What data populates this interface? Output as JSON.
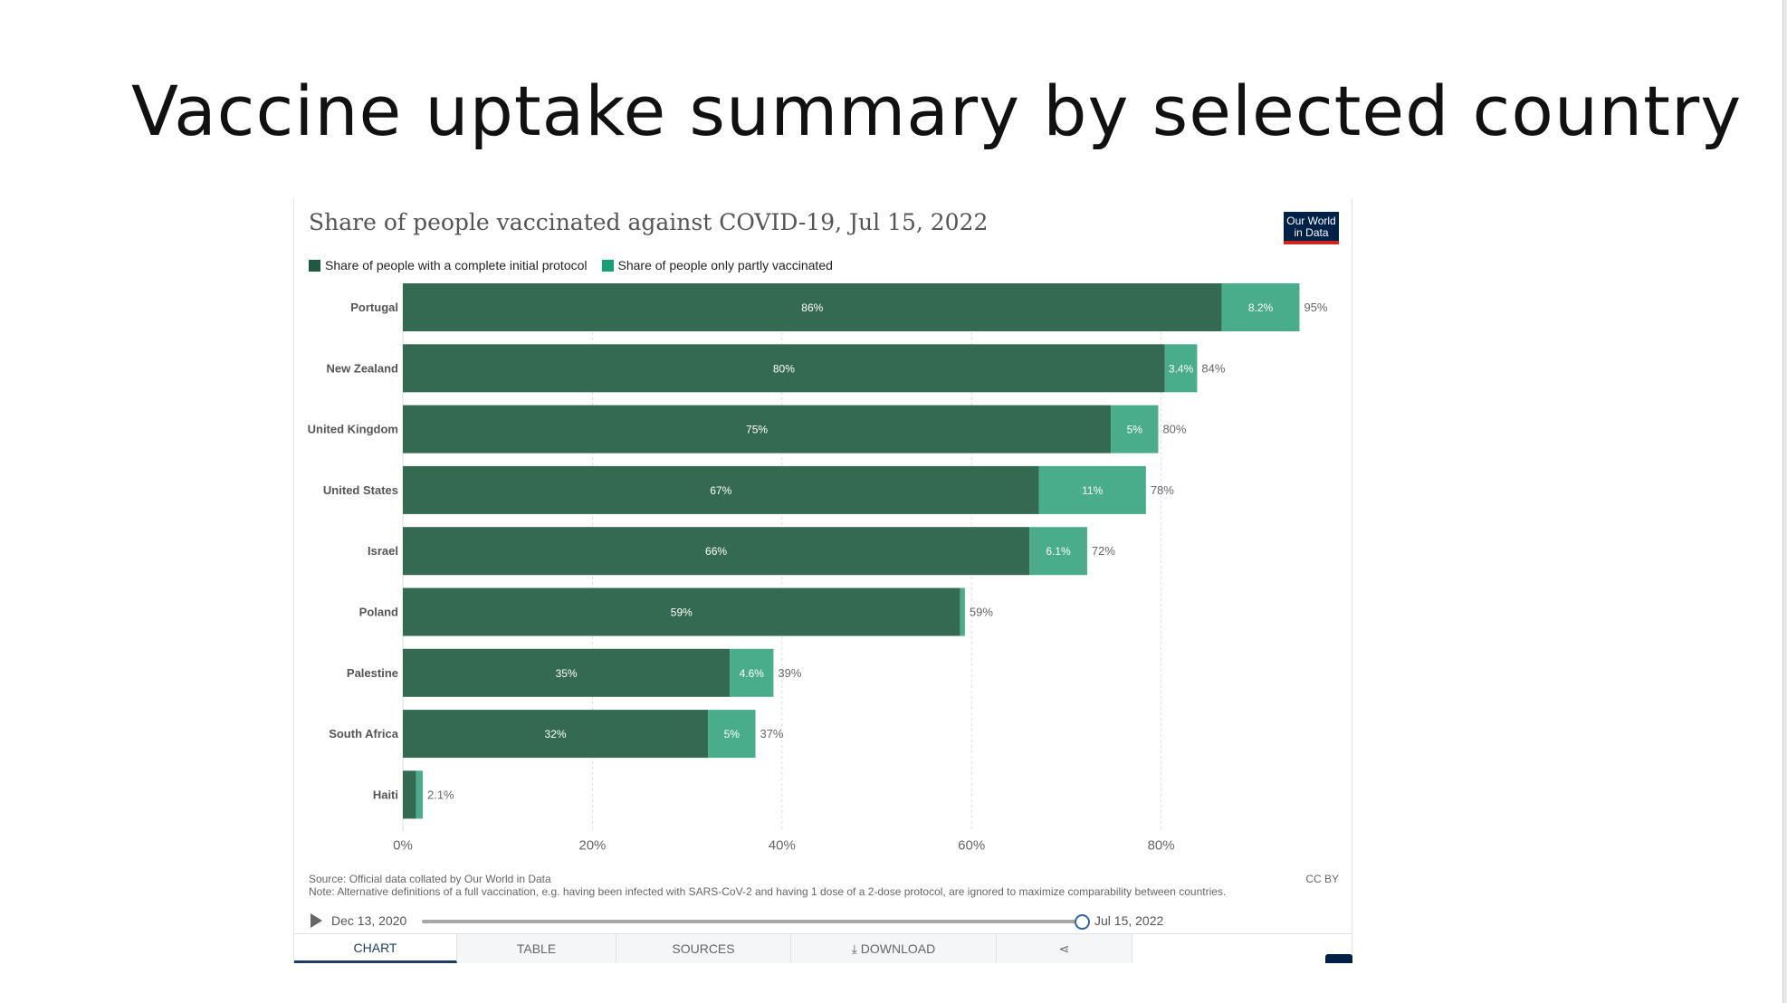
{
  "slide": {
    "title": "Vaccine uptake summary by selected country"
  },
  "card": {
    "title": "Share of people vaccinated against COVID-19, Jul 15, 2022",
    "logo_line1": "Our World",
    "logo_line2": "in Data",
    "source": "Source: Official data collated by Our World in Data",
    "note": "Note: Alternative definitions of a full vaccination, e.g. having been infected with SARS-CoV-2 and having 1 dose of a 2-dose protocol, are ignored to maximize comparability between countries.",
    "license": "CC BY"
  },
  "timeline": {
    "start": "Dec 13, 2020",
    "end": "Jul 15, 2022"
  },
  "tabs": [
    {
      "label": "CHART",
      "active": true
    },
    {
      "label": "TABLE",
      "active": false
    },
    {
      "label": "SOURCES",
      "active": false
    },
    {
      "label": "⤓ DOWNLOAD",
      "active": false
    },
    {
      "label": "⋖",
      "active": false
    }
  ],
  "colors": {
    "complete": "#336a51",
    "partial": "#49ad8c",
    "legend_complete": "#1f5941",
    "legend_partial": "#169e74"
  },
  "chart_data": {
    "type": "bar",
    "orientation": "horizontal",
    "stacked": true,
    "title": "Share of people vaccinated against COVID-19, Jul 15, 2022",
    "categories": [
      "Portugal",
      "New Zealand",
      "United Kingdom",
      "United States",
      "Israel",
      "Poland",
      "Palestine",
      "South Africa",
      "Haiti"
    ],
    "series": [
      {
        "name": "Share of people with a complete initial protocol",
        "values": [
          86.4,
          80.4,
          74.7,
          67.1,
          66.1,
          58.8,
          34.5,
          32.2,
          1.4
        ],
        "labels": [
          "86%",
          "80%",
          "75%",
          "67%",
          "66%",
          "59%",
          "35%",
          "32%",
          ""
        ]
      },
      {
        "name": "Share of people only partly vaccinated",
        "values": [
          8.2,
          3.4,
          5.0,
          11.3,
          6.1,
          0.5,
          4.6,
          5.0,
          0.7
        ],
        "labels": [
          "8.2%",
          "3.4%",
          "5%",
          "11%",
          "6.1%",
          "",
          "4.6%",
          "5%",
          ""
        ]
      }
    ],
    "totals": [
      "95%",
      "84%",
      "80%",
      "78%",
      "72%",
      "59%",
      "39%",
      "37%",
      "2.1%"
    ],
    "xticks": [
      "0%",
      "20%",
      "40%",
      "60%",
      "80%"
    ],
    "xtick_values": [
      0,
      20,
      40,
      60,
      80
    ],
    "xlim": [
      0,
      100
    ],
    "grid": true
  }
}
